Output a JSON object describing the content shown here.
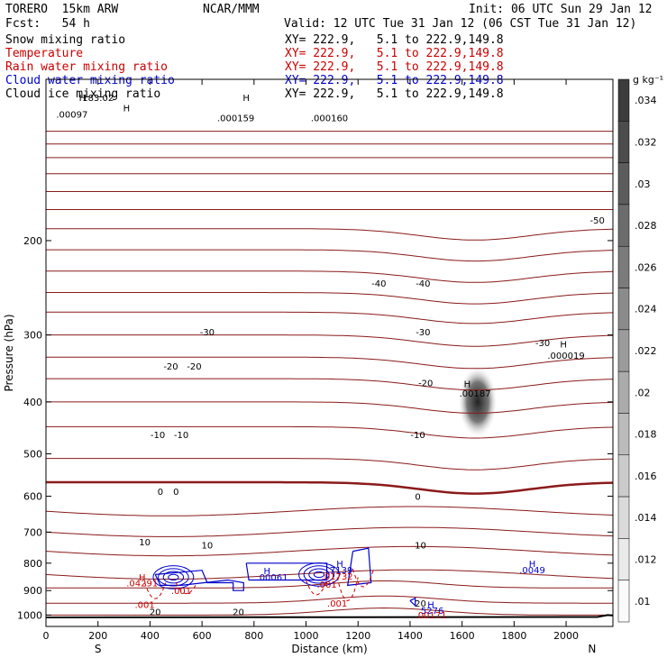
{
  "header": {
    "model": "TORERO  15km ARW",
    "org": "NCAR/MMM",
    "init": "Init: 06 UTC Sun 29 Jan 12",
    "fcst": "Fcst:   54 h",
    "valid": "Valid: 12 UTC Tue 31 Jan 12 (06 CST Tue 31 Jan 12)",
    "fields": [
      {
        "name": "Snow mixing ratio",
        "xy": "XY= 222.9,   5.1 to 222.9,149.8",
        "color": "#000000"
      },
      {
        "name": "Temperature",
        "xy": "XY= 222.9,   5.1 to 222.9,149.8",
        "color": "#cc0000"
      },
      {
        "name": "Rain water mixing ratio",
        "xy": "XY= 222.9,   5.1 to 222.9,149.8",
        "color": "#cc0000"
      },
      {
        "name": "Cloud water mixing ratio",
        "xy": "XY= 222.9,   5.1 to 222.9,149.8",
        "color": "#0000cc"
      },
      {
        "name": "Cloud ice mixing ratio",
        "xy": "XY= 222.9,   5.1 to 222.9,149.8",
        "color": "#000000"
      }
    ]
  },
  "colors": {
    "temperature": "#8b1a1a",
    "rain": "#cc0000",
    "cloud_water": "#0000cc",
    "ground": "#000000"
  },
  "chart_data": {
    "type": "contour",
    "xlabel": "Distance (km)",
    "ylabel": "Pressure (hPa)",
    "xlim": [
      0,
      2180
    ],
    "ylim": [
      1050,
      100
    ],
    "y_scale": "log",
    "x_ticks": [
      0,
      200,
      400,
      600,
      800,
      1000,
      1200,
      1400,
      1600,
      1800,
      2000
    ],
    "y_ticks": [
      200,
      300,
      400,
      500,
      600,
      700,
      800,
      900,
      1000
    ],
    "endpoints": {
      "left": "S",
      "right": "N"
    },
    "colorbar": {
      "unit": "g kg⁻¹",
      "ticks": [
        ".034",
        ".032",
        ".03",
        ".028",
        ".026",
        ".024",
        ".022",
        ".02",
        ".018",
        ".016",
        ".014",
        ".012",
        ".01"
      ]
    },
    "temperature_labels": [
      {
        "text": "-50",
        "x": 2120,
        "p": 183
      },
      {
        "text": "-40",
        "x": 1280,
        "p": 240
      },
      {
        "text": "-40",
        "x": 1450,
        "p": 240
      },
      {
        "text": "-30",
        "x": 620,
        "p": 296
      },
      {
        "text": "-30",
        "x": 1450,
        "p": 296
      },
      {
        "text": "-30",
        "x": 1910,
        "p": 310
      },
      {
        "text": "-20",
        "x": 480,
        "p": 343
      },
      {
        "text": "-20",
        "x": 570,
        "p": 343
      },
      {
        "text": "-20",
        "x": 1460,
        "p": 368
      },
      {
        "text": "-10",
        "x": 430,
        "p": 460
      },
      {
        "text": "-10",
        "x": 520,
        "p": 460
      },
      {
        "text": "-10",
        "x": 1430,
        "p": 460
      },
      {
        "text": "0",
        "x": 440,
        "p": 587
      },
      {
        "text": "0",
        "x": 500,
        "p": 587
      },
      {
        "text": "0",
        "x": 1430,
        "p": 600
      },
      {
        "text": "10",
        "x": 380,
        "p": 730
      },
      {
        "text": "10",
        "x": 620,
        "p": 740
      },
      {
        "text": "10",
        "x": 1440,
        "p": 740
      },
      {
        "text": "20",
        "x": 1440,
        "p": 950
      },
      {
        "text": "20",
        "x": 420,
        "p": 985
      },
      {
        "text": "20",
        "x": 740,
        "p": 985
      }
    ],
    "extrema_labels": [
      {
        "text": "H",
        "x": 310,
        "p": 113,
        "color": "#000000"
      },
      {
        "text": ".000159",
        "x": 730,
        "p": 118,
        "color": "#000000"
      },
      {
        "text": "H",
        "x": 770,
        "p": 108,
        "color": "#000000"
      },
      {
        "text": ".000160",
        "x": 1090,
        "p": 118,
        "color": "#000000"
      },
      {
        "text": "H",
        "x": 1620,
        "p": 370,
        "color": "#000000"
      },
      {
        "text": ".00187",
        "x": 1650,
        "p": 385,
        "color": "#000000"
      },
      {
        "text": "H",
        "x": 1990,
        "p": 312,
        "color": "#000000"
      },
      {
        "text": ".000019",
        "x": 2000,
        "p": 327,
        "color": "#000000"
      },
      {
        "text": "H",
        "x": 370,
        "p": 848,
        "color": "#cc0000"
      },
      {
        "text": ".04291",
        "x": 370,
        "p": 870,
        "color": "#cc0000"
      },
      {
        "text": "H",
        "x": 850,
        "p": 826,
        "color": "#0000cc"
      },
      {
        "text": ".00061",
        "x": 870,
        "p": 848,
        "color": "#0000cc"
      },
      {
        "text": "H",
        "x": 1130,
        "p": 800,
        "color": "#0000cc"
      },
      {
        "text": ".7139",
        "x": 1130,
        "p": 822,
        "color": "#0000cc"
      },
      {
        "text": ".01732",
        "x": 1120,
        "p": 845,
        "color": "#cc0000"
      },
      {
        "text": ".001",
        "x": 520,
        "p": 900,
        "color": "#cc0000"
      },
      {
        "text": ".001",
        "x": 1080,
        "p": 875,
        "color": "#cc0000"
      },
      {
        "text": ".001",
        "x": 1120,
        "p": 950,
        "color": "#cc0000"
      },
      {
        "text": ".001",
        "x": 380,
        "p": 955,
        "color": "#cc0000"
      },
      {
        "text": "H",
        "x": 1870,
        "p": 800,
        "color": "#0000cc"
      },
      {
        "text": ".0049",
        "x": 1870,
        "p": 822,
        "color": "#0000cc"
      },
      {
        "text": "H",
        "x": 1480,
        "p": 955,
        "color": "#0000cc"
      },
      {
        "text": ".5276",
        "x": 1480,
        "p": 980,
        "color": "#0000cc"
      },
      {
        "text": ".00171",
        "x": 1480,
        "p": 998,
        "color": "#cc0000"
      },
      {
        "text": "H",
        "x": 140,
        "p": 108,
        "color": "#000000"
      },
      {
        "text": ".00097",
        "x": 100,
        "p": 116,
        "color": "#000000"
      },
      {
        "text": "183.02",
        "x": 200,
        "p": 108,
        "color": "#000000"
      }
    ],
    "temperature_isotherms_p_at_x0": [
      125,
      132,
      140,
      150,
      162,
      175,
      190,
      208,
      228,
      250,
      272,
      300,
      330,
      362,
      400,
      445,
      510,
      565,
      640,
      700,
      760,
      840,
      890,
      950,
      1000
    ]
  }
}
